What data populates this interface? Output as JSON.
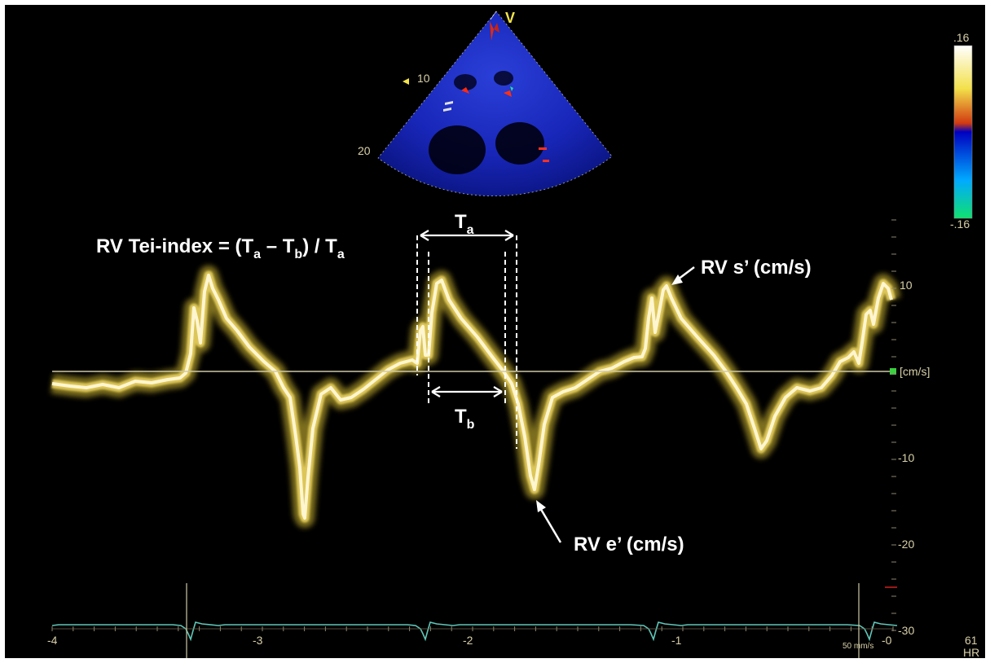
{
  "sector": {
    "probe_marker": "V",
    "depth_marks": [
      "10",
      "20"
    ]
  },
  "color_bar": {
    "top_label": ".16",
    "bottom_label": "-.16",
    "colors": [
      "#ffffff",
      "#f3e04a",
      "#d23a10",
      "#0000c0",
      "#00aaff",
      "#10e070"
    ]
  },
  "velocity_scale": {
    "ticks": [
      "10",
      "-10",
      "-20",
      "-30"
    ],
    "unit": "[cm/s]"
  },
  "time_axis": {
    "ticks": [
      "-4",
      "-3",
      "-2",
      "-1",
      "-0"
    ],
    "sweep_speed": "50 mm/s"
  },
  "hr": {
    "value": "61",
    "label": "HR"
  },
  "annotations": {
    "formula": {
      "prefix": "RV Tei-index = (T",
      "sub_a": "a",
      "minus": " – T",
      "sub_b": "b",
      "divide": ") / T",
      "sub_a2": "a"
    },
    "ta": {
      "main": "T",
      "sub": "a"
    },
    "tb": {
      "main": "T",
      "sub": "b"
    },
    "s_prime": "RV s’ (cm/s)",
    "e_prime": "RV e’ (cm/s)"
  },
  "colors": {
    "spectrum": "#f2e6a0",
    "ecg": "#5fc6b8",
    "baseline": "#cfc9a5",
    "scale_text": "#d8d0a8"
  }
}
